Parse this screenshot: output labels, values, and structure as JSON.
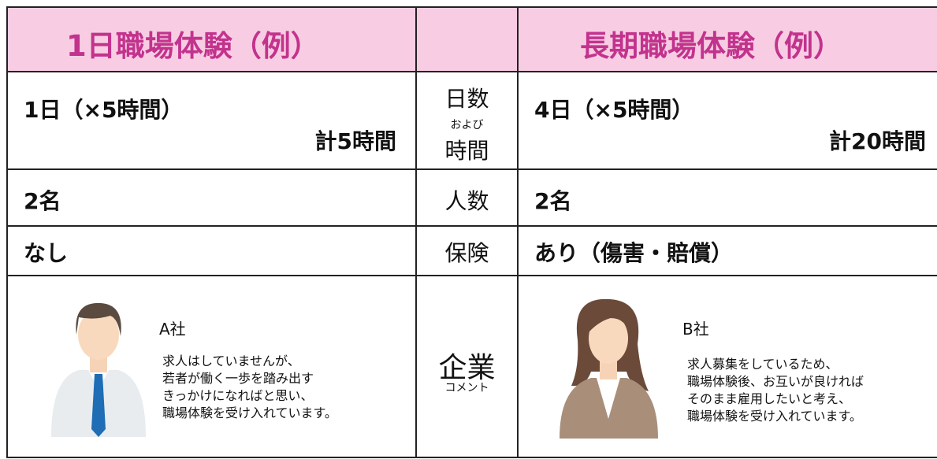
{
  "header": {
    "left_title": "1日職場体験（例）",
    "right_title": "長期職場体験（例）"
  },
  "rows": [
    {
      "label": [
        "日数",
        "および",
        "時間"
      ],
      "left": [
        "1日（×5時間）",
        "計5時間"
      ],
      "right": [
        "4日（×5時間）",
        "計20時間"
      ]
    },
    {
      "label": [
        "人数"
      ],
      "left": [
        "2名"
      ],
      "right": [
        "2名"
      ]
    },
    {
      "label": [
        "保険"
      ],
      "left": [
        "なし"
      ],
      "right": [
        "あり（傷害・賠償）"
      ]
    }
  ],
  "comments": {
    "label": [
      "企業",
      "コメント"
    ],
    "left": {
      "company": "A社",
      "lines": [
        "求人はしていませんが、",
        "若者が働く一歩を踏み出す",
        "きっかけになればと思い、",
        "職場体験を受け入れています。"
      ]
    },
    "right": {
      "company": "B社",
      "lines": [
        "求人募集をしているため、",
        "職場体験後、お互いが良ければ",
        "そのまま雇用したいと考え、",
        "職場体験を受け入れています。"
      ]
    }
  }
}
